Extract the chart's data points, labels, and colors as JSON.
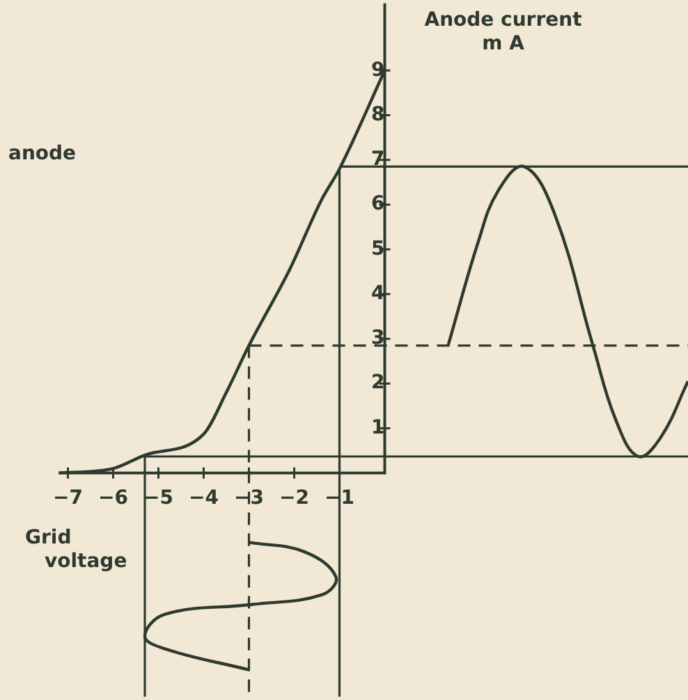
{
  "chart_data": {
    "type": "line",
    "xlabel": "Grid\nvoltage",
    "ylabel": "Anode current\nm A",
    "annotations": [
      "anode"
    ],
    "xlim": [
      -8.5,
      6.7
    ],
    "ylim": [
      -5,
      10.5
    ],
    "xticks": [
      -7,
      -6,
      -5,
      -4,
      -3,
      -2,
      -1
    ],
    "yticks": [
      1,
      2,
      3,
      4,
      5,
      6,
      7,
      8,
      9
    ],
    "tick_labels": "xy",
    "grid": false,
    "legend": false,
    "marker": "none",
    "series": [
      {
        "color": "#2f3a2f",
        "x": [
          -7.2,
          -6,
          -5.3,
          -4,
          -3.5,
          -3,
          -2.1,
          -1.4,
          -1,
          0
        ],
        "values": [
          0,
          0.1,
          0.4,
          0.87,
          1.8,
          2.85,
          4.55,
          6.1,
          6.8,
          9
        ]
      },
      {
        "color": "#2f3a2f",
        "x": [
          1.4,
          2.06,
          2.5,
          3.08,
          3.75,
          4.6,
          5.1,
          5.6,
          6.1,
          6.7
        ],
        "values": [
          2.85,
          5.15,
          6.3,
          6.85,
          5.8,
          2.85,
          1.2,
          0.37,
          0.8,
          2.05
        ]
      },
      {
        "color": "#2f3a2f",
        "x": [
          -3,
          -1.78,
          -1.08,
          -1.38,
          -2.94,
          -4.86,
          -5.3,
          -4.86,
          -3
        ],
        "values": [
          -1.55,
          -1.76,
          -2.32,
          -2.72,
          -2.94,
          -3.16,
          -3.65,
          -3.93,
          -4.4
        ]
      }
    ],
    "ref_lines": [
      {
        "axis": "y",
        "value": 6.85,
        "line_style": "solid"
      },
      {
        "axis": "y",
        "value": 2.85,
        "line_style": "dashed"
      },
      {
        "axis": "y",
        "value": 0.37,
        "line_style": "solid"
      },
      {
        "axis": "x",
        "value": -1,
        "line_style": "solid"
      },
      {
        "axis": "x",
        "value": -3,
        "line_style": "dashed"
      },
      {
        "axis": "x",
        "value": -5.3,
        "line_style": "solid"
      }
    ]
  }
}
